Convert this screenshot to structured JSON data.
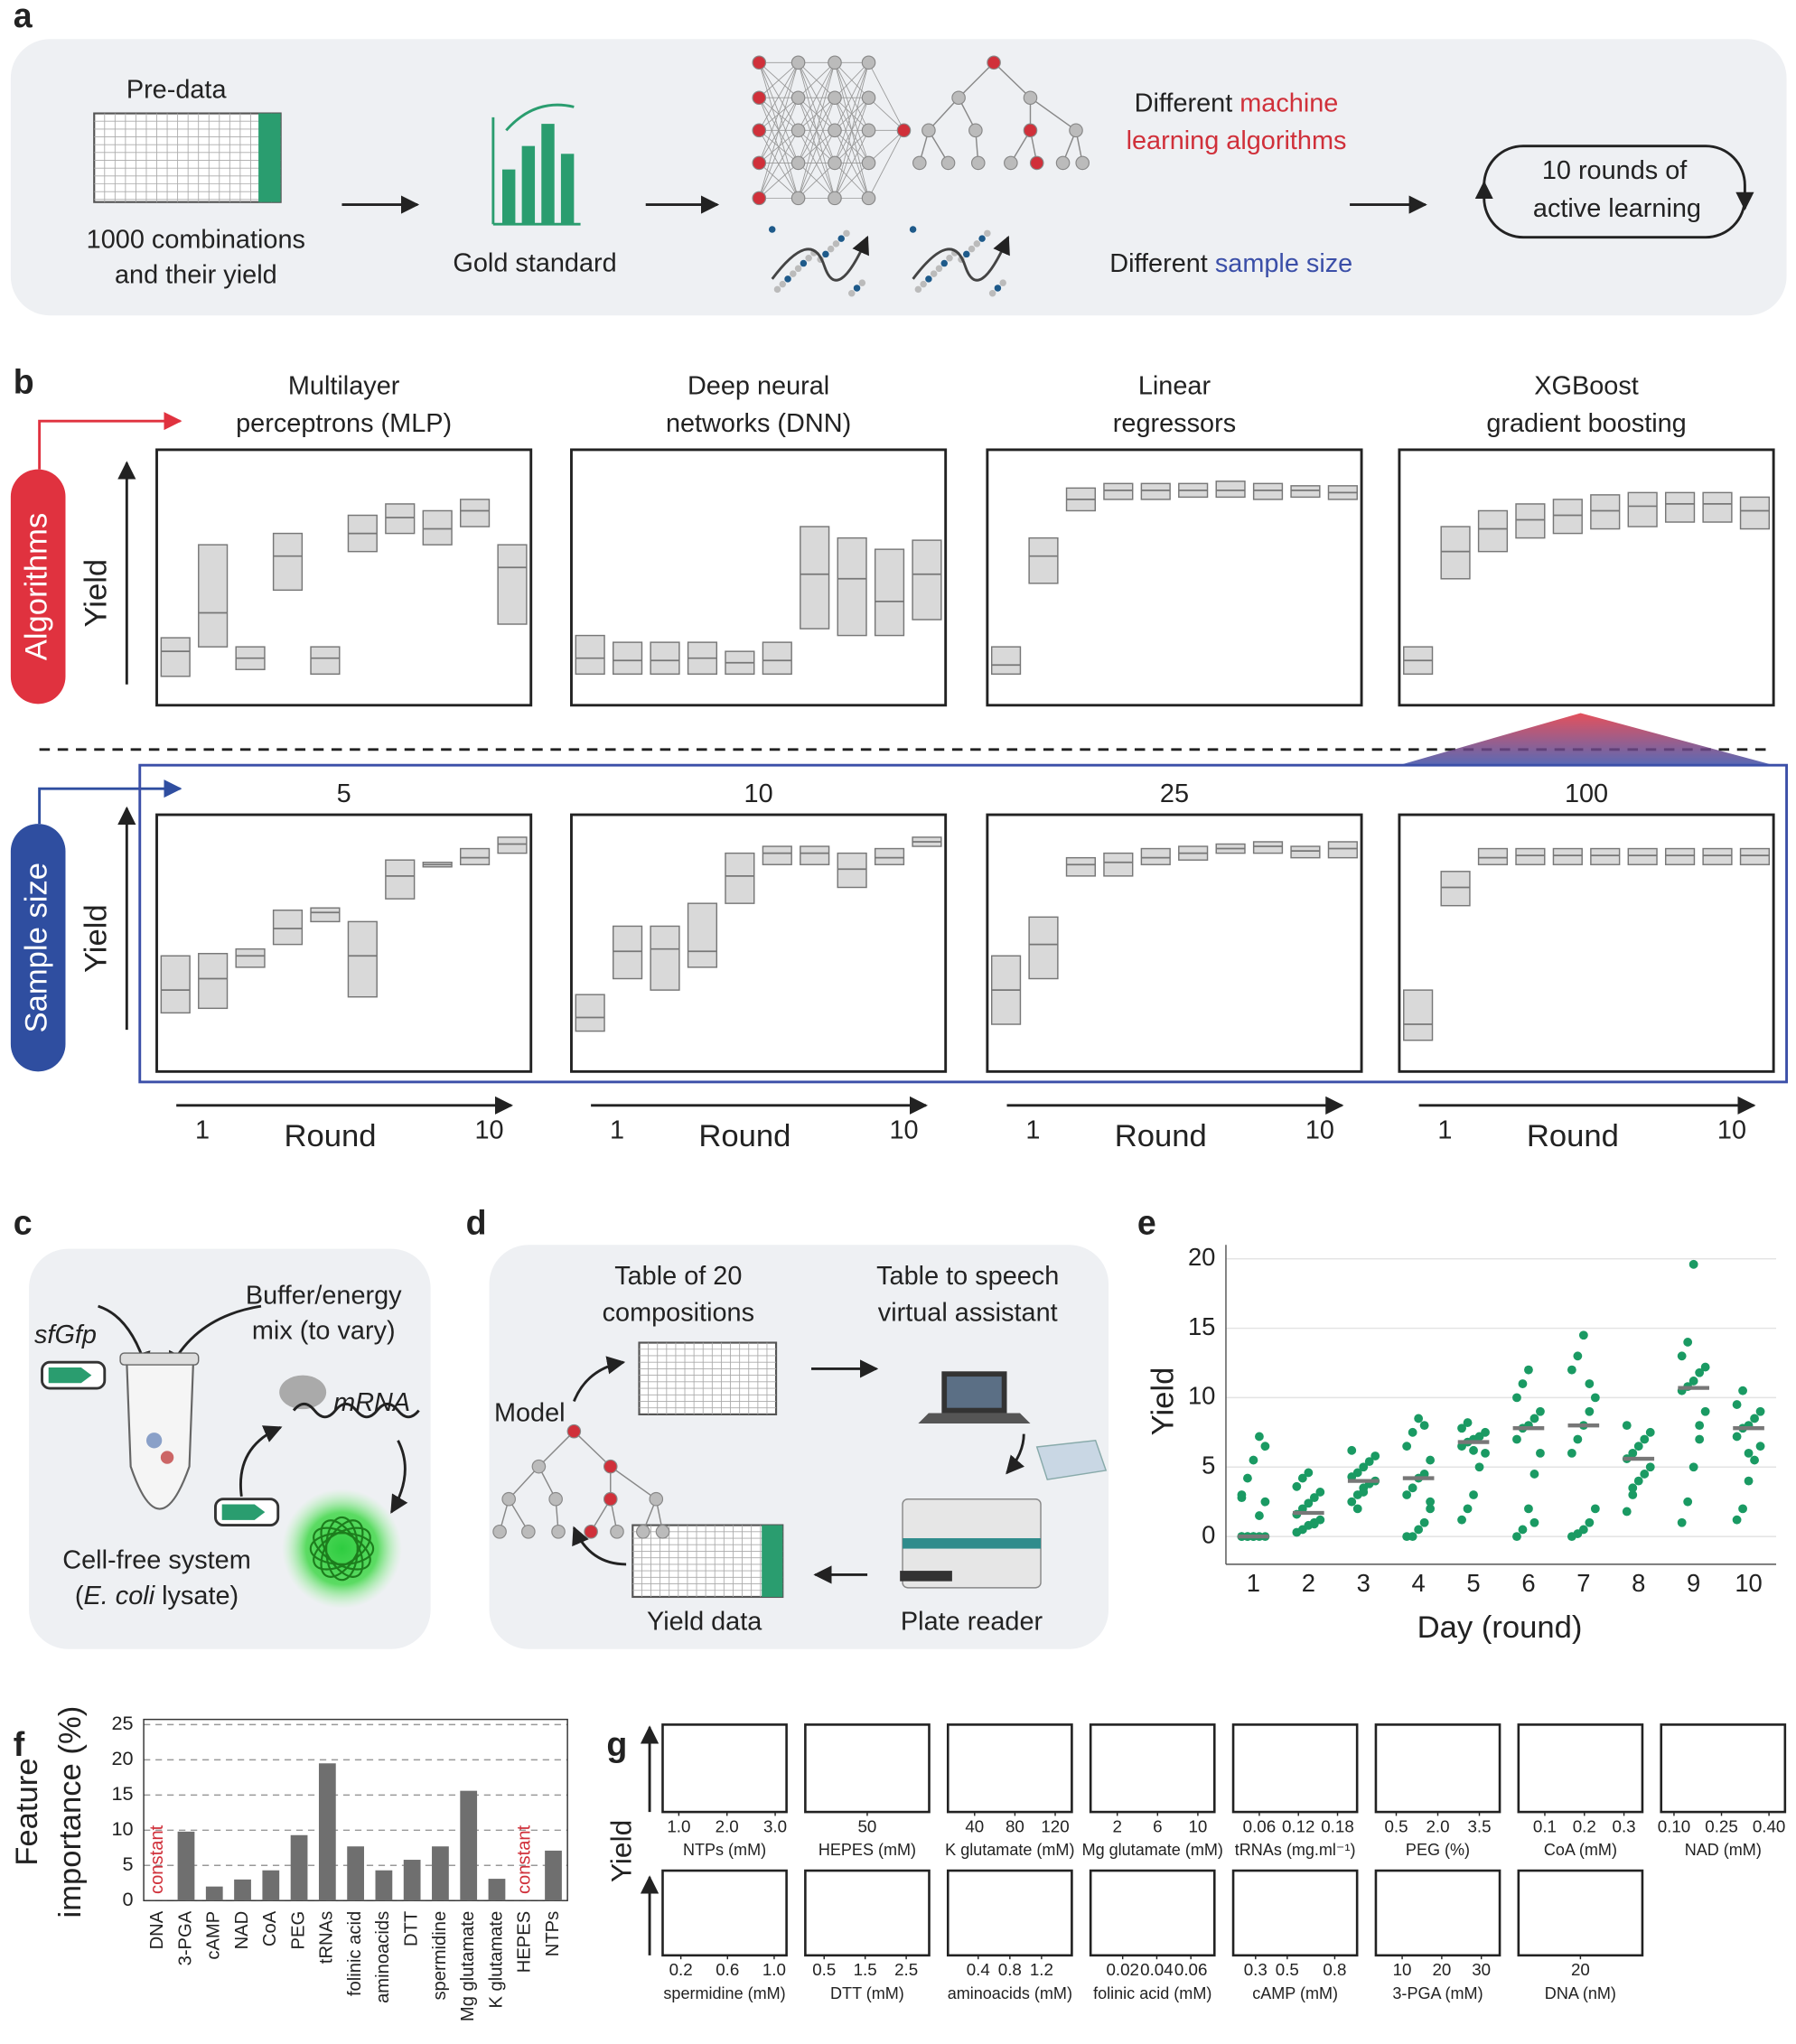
{
  "panel_a": {
    "label": "a",
    "pre_data": "Pre-data",
    "combos": [
      "1000 combinations",
      "and their yield"
    ],
    "gold": "Gold standard",
    "ml": [
      "Different ",
      "machine",
      "learning algorithms"
    ],
    "sample": [
      "Different ",
      "sample size"
    ],
    "rounds": [
      "10 rounds of",
      "active learning"
    ]
  },
  "panel_b": {
    "label": "b",
    "row_top": "Algorithms",
    "row_bottom": "Sample size",
    "axis_label": "Yield",
    "x_label": "Round",
    "round_ticks": [
      1,
      10
    ],
    "ylim": [
      0,
      100
    ],
    "algorithms": [
      {
        "title": [
          "Multilayer",
          "perceptrons (MLP)"
        ],
        "boxes": [
          [
            7,
            18,
            24
          ],
          [
            20,
            35,
            65
          ],
          [
            10,
            15,
            20
          ],
          [
            45,
            60,
            70
          ],
          [
            8,
            15,
            20
          ],
          [
            62,
            70,
            78
          ],
          [
            70,
            77,
            83
          ],
          [
            65,
            72,
            80
          ],
          [
            73,
            80,
            85
          ],
          [
            30,
            55,
            65
          ]
        ]
      },
      {
        "title": [
          "Deep neural",
          "networks (DNN)"
        ],
        "boxes": [
          [
            8,
            15,
            25
          ],
          [
            8,
            14,
            22
          ],
          [
            8,
            14,
            22
          ],
          [
            8,
            15,
            22
          ],
          [
            8,
            13,
            18
          ],
          [
            8,
            14,
            22
          ],
          [
            28,
            52,
            73
          ],
          [
            25,
            50,
            68
          ],
          [
            25,
            40,
            63
          ],
          [
            32,
            52,
            67
          ]
        ]
      },
      {
        "title": [
          "Linear",
          "regressors"
        ],
        "boxes": [
          [
            8,
            12,
            20
          ],
          [
            48,
            60,
            68
          ],
          [
            80,
            85,
            90
          ],
          [
            85,
            89,
            92
          ],
          [
            85,
            89,
            92
          ],
          [
            86,
            89,
            92
          ],
          [
            86,
            89,
            93
          ],
          [
            85,
            89,
            92
          ],
          [
            86,
            89,
            91
          ],
          [
            85,
            88,
            91
          ]
        ]
      },
      {
        "title": [
          "XGBoost",
          "gradient boosting"
        ],
        "boxes": [
          [
            8,
            14,
            20
          ],
          [
            50,
            62,
            73
          ],
          [
            62,
            72,
            80
          ],
          [
            68,
            76,
            83
          ],
          [
            70,
            78,
            85
          ],
          [
            72,
            80,
            87
          ],
          [
            73,
            82,
            88
          ],
          [
            75,
            83,
            88
          ],
          [
            75,
            83,
            88
          ],
          [
            72,
            80,
            86
          ]
        ]
      }
    ],
    "sample_sizes": [
      {
        "title": 5,
        "boxes": [
          [
            20,
            30,
            45
          ],
          [
            22,
            35,
            46
          ],
          [
            40,
            45,
            48
          ],
          [
            50,
            57,
            65
          ],
          [
            60,
            64,
            66
          ],
          [
            27,
            45,
            60
          ],
          [
            70,
            80,
            87
          ],
          [
            84,
            85,
            86
          ],
          [
            85,
            88,
            92
          ],
          [
            90,
            94,
            97
          ]
        ]
      },
      {
        "title": 10,
        "boxes": [
          [
            12,
            18,
            28
          ],
          [
            35,
            47,
            58
          ],
          [
            30,
            48,
            58
          ],
          [
            40,
            47,
            68
          ],
          [
            68,
            80,
            90
          ],
          [
            85,
            90,
            93
          ],
          [
            85,
            90,
            93
          ],
          [
            75,
            83,
            90
          ],
          [
            85,
            88,
            92
          ],
          [
            93,
            95,
            97
          ]
        ]
      },
      {
        "title": 25,
        "boxes": [
          [
            15,
            30,
            45
          ],
          [
            35,
            50,
            62
          ],
          [
            80,
            85,
            88
          ],
          [
            80,
            86,
            90
          ],
          [
            85,
            88,
            92
          ],
          [
            87,
            90,
            93
          ],
          [
            90,
            92,
            94
          ],
          [
            90,
            93,
            95
          ],
          [
            88,
            91,
            93
          ],
          [
            88,
            92,
            95
          ]
        ]
      },
      {
        "title": 100,
        "boxes": [
          [
            8,
            15,
            30
          ],
          [
            67,
            75,
            82
          ],
          [
            85,
            88,
            92
          ],
          [
            85,
            89,
            92
          ],
          [
            85,
            89,
            92
          ],
          [
            85,
            89,
            92
          ],
          [
            85,
            89,
            92
          ],
          [
            85,
            89,
            92
          ],
          [
            85,
            89,
            92
          ],
          [
            85,
            89,
            92
          ]
        ]
      }
    ]
  },
  "panel_c": {
    "label": "c",
    "buffer": [
      "Buffer/energy",
      "mix (to vary)"
    ],
    "gene": "sfGfp",
    "mrna": "mRNA",
    "system": "Cell-free system",
    "lysate": [
      "(",
      "E. coli",
      " lysate)"
    ]
  },
  "panel_d": {
    "label": "d",
    "table": [
      "Table of 20",
      "compositions"
    ],
    "speech": [
      "Table to speech",
      "virtual assistant"
    ],
    "model": "Model",
    "yield": "Yield data",
    "reader": "Plate reader"
  },
  "chart_data": [
    {
      "type": "strip",
      "label": "e",
      "x_label": "Day (round)",
      "y_label": "Yield",
      "categories": [
        "1",
        "2",
        "3",
        "4",
        "5",
        "6",
        "7",
        "8",
        "9",
        "10"
      ],
      "values": [
        0,
        1.7,
        4.0,
        4.2,
        6.8,
        7.8,
        8.0,
        5.6,
        10.7,
        7.8
      ],
      "median_color": "#777777",
      "color": "#1a9a63",
      "points": [
        [
          0,
          0,
          0,
          0,
          0,
          0,
          0,
          0,
          1.5,
          2.5,
          2.8,
          4.2,
          5.5,
          7.2,
          6.5,
          3.0
        ],
        [
          0.3,
          0.5,
          0.8,
          1.0,
          1.2,
          1.6,
          2.0,
          2.4,
          2.8,
          3.2,
          3.6,
          4.2,
          4.6,
          0.9
        ],
        [
          2.5,
          3.0,
          3.5,
          3.8,
          4.0,
          4.3,
          4.6,
          5.0,
          5.4,
          5.8,
          6.2,
          2.0,
          3.2
        ],
        [
          0,
          0,
          0.5,
          1.0,
          2.0,
          3.0,
          3.5,
          4.2,
          4.5,
          5.5,
          6.5,
          7.5,
          8.5,
          8.0,
          2.5
        ],
        [
          1.2,
          2.0,
          3.0,
          5.0,
          6.0,
          6.5,
          6.8,
          7.0,
          7.2,
          7.5,
          7.8,
          8.2,
          6.2
        ],
        [
          0,
          0.5,
          2.0,
          4.5,
          6.0,
          7.0,
          7.8,
          8.0,
          8.5,
          9.0,
          10.0,
          11.0,
          12.0,
          1.0
        ],
        [
          0,
          0.2,
          0.5,
          1.0,
          2.0,
          6.0,
          7.0,
          8.0,
          9.0,
          10.0,
          12.0,
          13.0,
          14.5,
          11.0
        ],
        [
          1.8,
          3.0,
          4.0,
          4.5,
          5.0,
          5.6,
          6.0,
          6.5,
          7.0,
          7.5,
          8.0,
          3.5
        ],
        [
          1.0,
          2.5,
          5.0,
          7.0,
          9.0,
          10.5,
          10.8,
          11.2,
          11.8,
          12.2,
          13.0,
          14.0,
          19.6,
          8.0
        ],
        [
          1.2,
          2.0,
          4.0,
          5.5,
          6.5,
          7.2,
          7.8,
          8.0,
          8.5,
          9.0,
          9.5,
          10.5,
          6.0
        ]
      ],
      "ylim": [
        -2,
        21
      ],
      "yticks": [
        0,
        5,
        10,
        15,
        20
      ],
      "grid": true
    },
    {
      "type": "bar",
      "label": "f",
      "y_label": [
        "Feature",
        "importance (%)"
      ],
      "annotation": "constant",
      "annotation_color": "#d0303a",
      "annotated": [
        "DNA",
        "HEPES"
      ],
      "categories": [
        "DNA",
        "3-PGA",
        "cAMP",
        "NAD",
        "CoA",
        "PEG",
        "tRNAs",
        "folinic acid",
        "aminoacids",
        "DTT",
        "spermidine",
        "Mg glutamate",
        "K glutamate",
        "HEPES",
        "NTPs"
      ],
      "values": [
        0,
        9.8,
        2,
        3,
        4.3,
        9.3,
        19.5,
        7.7,
        4.3,
        5.8,
        7.7,
        15.6,
        3.1,
        0,
        7.1
      ],
      "color": "#6f6f6f",
      "ylim": [
        0,
        25
      ],
      "yticks": [
        0,
        5,
        10,
        15,
        20,
        25
      ],
      "grid": true
    }
  ],
  "panel_g": {
    "label": "g",
    "axis_label": "Yield",
    "plots": [
      {
        "x_label": "NTPs (mM)",
        "xlim": [
          0.8,
          3.1
        ],
        "xticks": [
          {
            "value": 1,
            "label": "1.0"
          },
          {
            "value": 2,
            "label": "2.0"
          },
          {
            "value": 3,
            "label": "3.0"
          }
        ]
      },
      {
        "x_label": "HEPES (mM)",
        "xlim": [
          40,
          60
        ],
        "xticks": [
          50
        ]
      },
      {
        "x_label": "K glutamate (mM)",
        "xlim": [
          20,
          130
        ],
        "xticks": [
          40,
          80,
          120
        ]
      },
      {
        "x_label": "Mg glutamate (mM)",
        "xlim": [
          0,
          11
        ],
        "xticks": [
          2,
          6,
          10
        ]
      },
      {
        "x_label": "tRNAs (mg.ml⁻¹)",
        "xlim": [
          0.03,
          0.2
        ],
        "xticks": [
          0.06,
          0.12,
          0.18
        ]
      },
      {
        "x_label": "PEG (%)",
        "xlim": [
          0,
          4
        ],
        "xticks": [
          0.5,
          {
            "value": 2,
            "label": "2.0"
          },
          3.5
        ]
      },
      {
        "x_label": "CoA (mM)",
        "xlim": [
          0.05,
          0.33
        ],
        "xticks": [
          0.1,
          0.2,
          0.3
        ]
      },
      {
        "x_label": "NAD (mM)",
        "xlim": [
          0.08,
          0.43
        ],
        "xticks": [
          {
            "value": 0.1,
            "label": "0.10"
          },
          0.25,
          {
            "value": 0.4,
            "label": "0.40"
          }
        ]
      },
      {
        "x_label": "spermidine (mM)",
        "xlim": [
          0.1,
          1.05
        ],
        "xticks": [
          0.2,
          0.6,
          {
            "value": 1,
            "label": "1.0"
          }
        ]
      },
      {
        "x_label": "DTT (mM)",
        "xlim": [
          0.2,
          2.9
        ],
        "xticks": [
          0.5,
          1.5,
          2.5
        ]
      },
      {
        "x_label": "aminoacids (mM)",
        "xlim": [
          0.1,
          1.5
        ],
        "xticks": [
          0.4,
          0.8,
          1.2
        ]
      },
      {
        "x_label": "folinic acid (mM)",
        "xlim": [
          0.005,
          0.07
        ],
        "xticks": [
          0.02,
          0.04,
          0.06
        ]
      },
      {
        "x_label": "cAMP (mM)",
        "xlim": [
          0.2,
          0.9
        ],
        "xticks": [
          0.3,
          0.5,
          0.8
        ]
      },
      {
        "x_label": "3-PGA (mM)",
        "xlim": [
          5,
          33
        ],
        "xticks": [
          10,
          20,
          30
        ]
      },
      {
        "x_label": "DNA (nM)",
        "xlim": [
          10,
          30
        ],
        "xticks": [
          20
        ]
      }
    ]
  }
}
